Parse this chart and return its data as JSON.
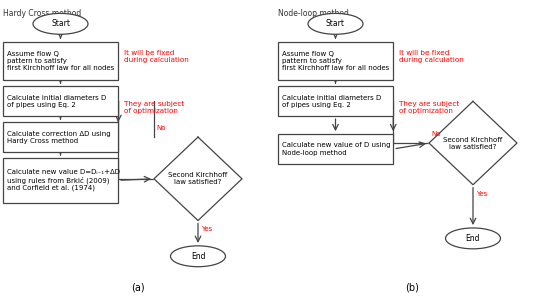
{
  "title_a": "Hardy Cross method",
  "title_b": "Node-loop method",
  "label_a": "(a)",
  "label_b": "(b)",
  "bg_color": "#ffffff",
  "box_edge_color": "#444444",
  "arrow_color": "#444444",
  "red_color": "#ff0000",
  "text_color": "#000000",
  "diagram_a": {
    "box1_text": "Assume flow Q\npattern to satisfy\nfirst Kirchhoff law for all nodes",
    "box2_text": "Calculate initial diameters D\nof pipes using Eq. 2",
    "box3_text": "Calculate correction ΔD using\nHardy Cross method",
    "box4_text": "Calculate new value D=Dᵢ₋₁+ΔD\nusing rules from Brkić (2009)\nand Corfield et al. (1974)",
    "diamond_text": "Second Kirchhoff\nlaw satisfied?",
    "red1_text": "It will be fixed\nduring calculation",
    "red2_text": "They are subject\nof optimization"
  },
  "diagram_b": {
    "box1_text": "Assume flow Q\npattern to satisfy\nfirst Kirchhoff law for all nodes",
    "box2_text": "Calculate initial diameters D\nof pipes using Eq. 2",
    "box3_text": "Calculate new value of D using\nNode-loop method",
    "diamond_text": "Second Kirchhoff\nlaw satisfied?",
    "red1_text": "It will be fixed\nduring calculation",
    "red2_text": "They are subject\nof optimization"
  }
}
